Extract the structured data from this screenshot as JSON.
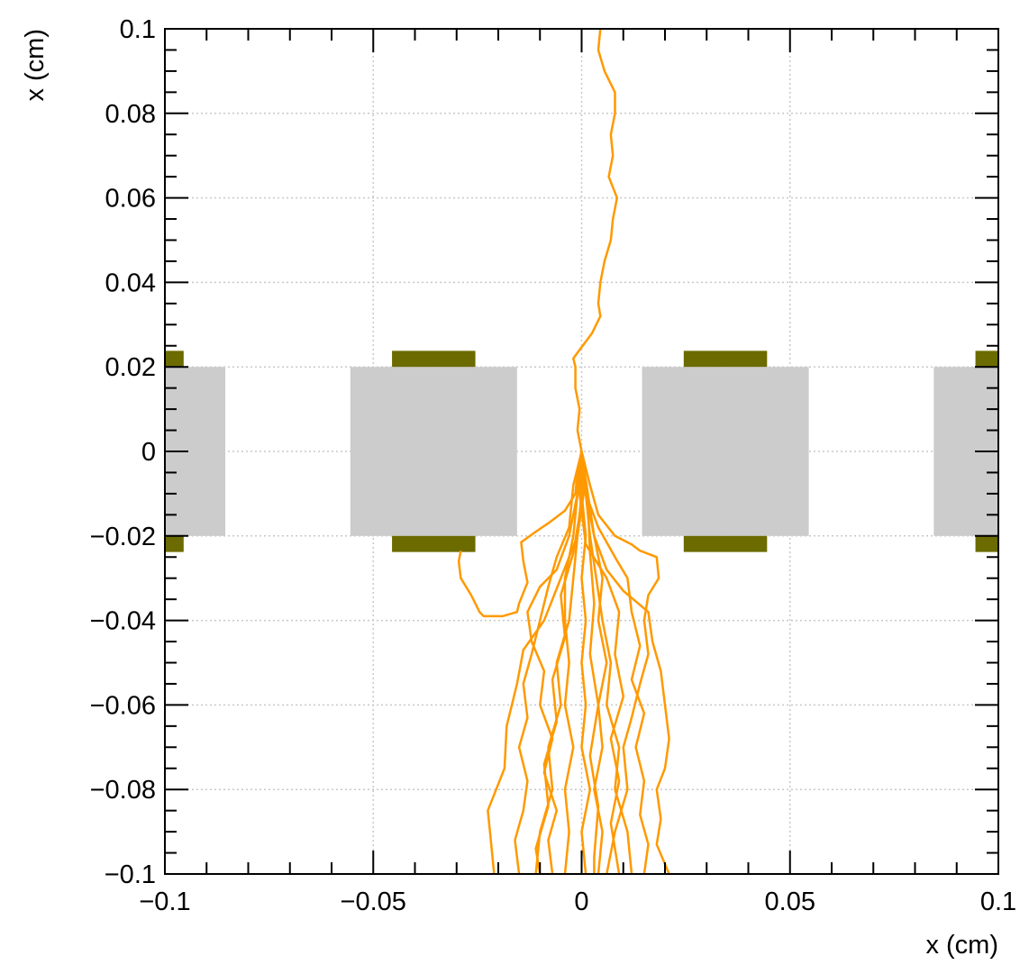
{
  "chart_data": {
    "type": "line",
    "xlabel": "x (cm)",
    "ylabel": "x (cm)",
    "xlim": [
      -0.1,
      0.1
    ],
    "ylim": [
      -0.1,
      0.1
    ],
    "grid": true,
    "x_ticks": [
      {
        "value": -0.1,
        "label": "−0.1"
      },
      {
        "value": -0.05,
        "label": "−0.05"
      },
      {
        "value": 0,
        "label": "0"
      },
      {
        "value": 0.05,
        "label": "0.05"
      },
      {
        "value": 0.1,
        "label": "0.1"
      }
    ],
    "y_ticks": [
      {
        "value": -0.1,
        "label": "−0.1"
      },
      {
        "value": -0.08,
        "label": "−0.08"
      },
      {
        "value": -0.06,
        "label": "−0.06"
      },
      {
        "value": -0.04,
        "label": "−0.04"
      },
      {
        "value": -0.02,
        "label": "−0.02"
      },
      {
        "value": 0,
        "label": "0"
      },
      {
        "value": 0.02,
        "label": "0.02"
      },
      {
        "value": 0.04,
        "label": "0.04"
      },
      {
        "value": 0.06,
        "label": "0.06"
      },
      {
        "value": 0.08,
        "label": "0.08"
      },
      {
        "value": 0.1,
        "label": "0.1"
      }
    ],
    "dielectric_regions": [
      {
        "x": [
          -0.1,
          -0.0855
        ],
        "y": [
          -0.02,
          0.02
        ]
      },
      {
        "x": [
          -0.0555,
          -0.0155
        ],
        "y": [
          -0.02,
          0.02
        ]
      },
      {
        "x": [
          0.0145,
          0.0545
        ],
        "y": [
          -0.02,
          0.02
        ]
      },
      {
        "x": [
          0.0845,
          0.1
        ],
        "y": [
          -0.02,
          0.02
        ]
      }
    ],
    "electrodes": [
      {
        "x": [
          -0.1,
          -0.0955
        ],
        "y": [
          0.02,
          0.0238
        ]
      },
      {
        "x": [
          -0.1,
          -0.0955
        ],
        "y": [
          -0.0238,
          -0.02
        ]
      },
      {
        "x": [
          -0.0455,
          -0.0255
        ],
        "y": [
          0.02,
          0.0238
        ]
      },
      {
        "x": [
          -0.0455,
          -0.0255
        ],
        "y": [
          -0.0238,
          -0.02
        ]
      },
      {
        "x": [
          0.0245,
          0.0445
        ],
        "y": [
          0.02,
          0.0238
        ]
      },
      {
        "x": [
          0.0245,
          0.0445
        ],
        "y": [
          -0.0238,
          -0.02
        ]
      },
      {
        "x": [
          0.0945,
          0.1
        ],
        "y": [
          0.02,
          0.0238
        ]
      },
      {
        "x": [
          0.0945,
          0.1
        ],
        "y": [
          -0.0238,
          -0.02
        ]
      }
    ],
    "tracks": [
      {
        "points": [
          [
            0.0045,
            0.1
          ],
          [
            0.004,
            0.095
          ],
          [
            0.0055,
            0.09
          ],
          [
            0.008,
            0.085
          ],
          [
            0.008,
            0.08
          ],
          [
            0.007,
            0.075
          ],
          [
            0.0075,
            0.07
          ],
          [
            0.0065,
            0.065
          ],
          [
            0.0085,
            0.06
          ],
          [
            0.0075,
            0.055
          ],
          [
            0.007,
            0.05
          ],
          [
            0.0055,
            0.045
          ],
          [
            0.0045,
            0.04
          ],
          [
            0.004,
            0.035
          ],
          [
            0.0045,
            0.032
          ],
          [
            0.0025,
            0.028
          ],
          [
            -0.0005,
            0.024
          ],
          [
            -0.002,
            0.022
          ],
          [
            -0.0015,
            0.02
          ],
          [
            -0.0015,
            0.015
          ],
          [
            -0.0005,
            0.01
          ],
          [
            -0.001,
            0.005
          ],
          [
            0.0,
            0.0
          ]
        ]
      },
      {
        "points": [
          [
            0.0,
            0.0
          ],
          [
            -0.001,
            -0.005
          ],
          [
            -0.0015,
            -0.01
          ],
          [
            -0.004,
            -0.014
          ],
          [
            -0.008,
            -0.017
          ],
          [
            -0.011,
            -0.019
          ],
          [
            -0.0145,
            -0.0215
          ],
          [
            -0.014,
            -0.026
          ],
          [
            -0.013,
            -0.031
          ],
          [
            -0.015,
            -0.036
          ],
          [
            -0.0155,
            -0.038
          ],
          [
            -0.019,
            -0.039
          ],
          [
            -0.0235,
            -0.039
          ],
          [
            -0.0245,
            -0.038
          ],
          [
            -0.0265,
            -0.034
          ],
          [
            -0.029,
            -0.03
          ],
          [
            -0.0295,
            -0.026
          ],
          [
            -0.029,
            -0.0235
          ]
        ]
      },
      {
        "points": [
          [
            0.0,
            0.0
          ],
          [
            0.0,
            -0.01
          ],
          [
            -0.001,
            -0.02
          ],
          [
            -0.005,
            -0.03
          ],
          [
            -0.009,
            -0.04
          ],
          [
            -0.014,
            -0.047
          ],
          [
            -0.0155,
            -0.055
          ],
          [
            -0.018,
            -0.065
          ],
          [
            -0.0185,
            -0.075
          ],
          [
            -0.0225,
            -0.085
          ],
          [
            -0.022,
            -0.09
          ],
          [
            -0.0215,
            -0.095
          ],
          [
            -0.021,
            -0.1
          ]
        ]
      },
      {
        "points": [
          [
            0.0,
            0.0
          ],
          [
            0.001,
            -0.01
          ],
          [
            0.003,
            -0.02
          ],
          [
            0.006,
            -0.028
          ],
          [
            0.01,
            -0.033
          ],
          [
            0.016,
            -0.038
          ],
          [
            0.017,
            -0.045
          ],
          [
            0.019,
            -0.052
          ],
          [
            0.02,
            -0.06
          ],
          [
            0.021,
            -0.068
          ],
          [
            0.02,
            -0.075
          ],
          [
            0.018,
            -0.08
          ],
          [
            0.019,
            -0.087
          ],
          [
            0.018,
            -0.093
          ],
          [
            0.021,
            -0.1
          ]
        ]
      },
      {
        "points": [
          [
            0.0,
            0.0
          ],
          [
            0.002,
            -0.008
          ],
          [
            0.004,
            -0.015
          ],
          [
            0.008,
            -0.02
          ],
          [
            0.012,
            -0.022
          ],
          [
            0.014,
            -0.0235
          ],
          [
            0.018,
            -0.025
          ],
          [
            0.0185,
            -0.03
          ],
          [
            0.016,
            -0.034
          ],
          [
            0.015,
            -0.04
          ],
          [
            0.016,
            -0.048
          ],
          [
            0.014,
            -0.055
          ],
          [
            0.012,
            -0.063
          ],
          [
            0.01,
            -0.07
          ],
          [
            0.011,
            -0.08
          ],
          [
            0.008,
            -0.09
          ],
          [
            0.006,
            -0.1
          ]
        ]
      },
      {
        "points": [
          [
            0.0,
            0.0
          ],
          [
            -0.002,
            -0.008
          ],
          [
            -0.003,
            -0.018
          ],
          [
            -0.006,
            -0.025
          ],
          [
            -0.008,
            -0.032
          ],
          [
            -0.01,
            -0.04
          ],
          [
            -0.012,
            -0.048
          ],
          [
            -0.014,
            -0.055
          ],
          [
            -0.013,
            -0.063
          ],
          [
            -0.015,
            -0.07
          ],
          [
            -0.013,
            -0.078
          ],
          [
            -0.014,
            -0.085
          ],
          [
            -0.016,
            -0.092
          ],
          [
            -0.015,
            -0.1
          ]
        ]
      },
      {
        "points": [
          [
            0.0,
            0.0
          ],
          [
            0.0005,
            -0.01
          ],
          [
            -0.001,
            -0.02
          ],
          [
            -0.002,
            -0.03
          ],
          [
            -0.003,
            -0.04
          ],
          [
            -0.006,
            -0.05
          ],
          [
            -0.005,
            -0.06
          ],
          [
            -0.008,
            -0.07
          ],
          [
            -0.007,
            -0.08
          ],
          [
            -0.01,
            -0.09
          ],
          [
            -0.011,
            -0.1
          ]
        ]
      },
      {
        "points": [
          [
            0.0,
            0.0
          ],
          [
            0.001,
            -0.01
          ],
          [
            0.002,
            -0.02
          ],
          [
            0.0035,
            -0.03
          ],
          [
            0.005,
            -0.04
          ],
          [
            0.007,
            -0.05
          ],
          [
            0.006,
            -0.06
          ],
          [
            0.009,
            -0.07
          ],
          [
            0.008,
            -0.08
          ],
          [
            0.011,
            -0.09
          ],
          [
            0.012,
            -0.1
          ]
        ]
      },
      {
        "points": [
          [
            0.0,
            0.0
          ],
          [
            0.0,
            -0.01
          ],
          [
            0.001,
            -0.02
          ],
          [
            0.0,
            -0.03
          ],
          [
            0.001,
            -0.04
          ],
          [
            0.0,
            -0.05
          ],
          [
            0.001,
            -0.06
          ],
          [
            0.0,
            -0.07
          ],
          [
            0.002,
            -0.08
          ],
          [
            0.0,
            -0.09
          ],
          [
            0.001,
            -0.1
          ]
        ]
      },
      {
        "points": [
          [
            0.0,
            0.0
          ],
          [
            -0.001,
            -0.01
          ],
          [
            -0.002,
            -0.02
          ],
          [
            -0.004,
            -0.03
          ],
          [
            -0.004,
            -0.04
          ],
          [
            -0.003,
            -0.05
          ],
          [
            -0.004,
            -0.06
          ],
          [
            -0.002,
            -0.07
          ],
          [
            -0.004,
            -0.08
          ],
          [
            -0.003,
            -0.09
          ],
          [
            -0.004,
            -0.1
          ]
        ]
      },
      {
        "points": [
          [
            0.0,
            0.0
          ],
          [
            0.0015,
            -0.01
          ],
          [
            0.003,
            -0.02
          ],
          [
            0.005,
            -0.03
          ],
          [
            0.004,
            -0.04
          ],
          [
            0.006,
            -0.05
          ],
          [
            0.004,
            -0.06
          ],
          [
            0.005,
            -0.07
          ],
          [
            0.003,
            -0.08
          ],
          [
            0.005,
            -0.09
          ],
          [
            0.004,
            -0.1
          ]
        ]
      },
      {
        "points": [
          [
            0.0,
            0.0
          ],
          [
            -0.001,
            -0.01
          ],
          [
            -0.003,
            -0.02
          ],
          [
            -0.006,
            -0.028
          ],
          [
            -0.01,
            -0.032
          ],
          [
            -0.013,
            -0.038
          ],
          [
            -0.012,
            -0.045
          ],
          [
            -0.009,
            -0.052
          ],
          [
            -0.01,
            -0.06
          ],
          [
            -0.007,
            -0.068
          ],
          [
            -0.009,
            -0.076
          ],
          [
            -0.006,
            -0.085
          ],
          [
            -0.008,
            -0.092
          ],
          [
            -0.007,
            -0.1
          ]
        ]
      },
      {
        "points": [
          [
            0.0,
            0.0
          ],
          [
            0.001,
            -0.01
          ],
          [
            0.004,
            -0.018
          ],
          [
            0.008,
            -0.025
          ],
          [
            0.011,
            -0.03
          ],
          [
            0.012,
            -0.038
          ],
          [
            0.014,
            -0.046
          ],
          [
            0.012,
            -0.054
          ],
          [
            0.015,
            -0.062
          ],
          [
            0.013,
            -0.07
          ],
          [
            0.015,
            -0.078
          ],
          [
            0.014,
            -0.086
          ],
          [
            0.016,
            -0.093
          ],
          [
            0.015,
            -0.1
          ]
        ]
      },
      {
        "points": [
          [
            0.0,
            0.0
          ],
          [
            0.0,
            -0.012
          ],
          [
            -0.002,
            -0.024
          ],
          [
            -0.005,
            -0.034
          ],
          [
            -0.004,
            -0.044
          ],
          [
            -0.007,
            -0.054
          ],
          [
            -0.006,
            -0.064
          ],
          [
            -0.009,
            -0.074
          ],
          [
            -0.008,
            -0.084
          ],
          [
            -0.011,
            -0.094
          ],
          [
            -0.01,
            -0.1
          ]
        ]
      },
      {
        "points": [
          [
            0.0,
            0.0
          ],
          [
            0.0015,
            -0.012
          ],
          [
            0.002,
            -0.024
          ],
          [
            0.003,
            -0.036
          ],
          [
            0.002,
            -0.048
          ],
          [
            0.004,
            -0.06
          ],
          [
            0.002,
            -0.072
          ],
          [
            0.004,
            -0.084
          ],
          [
            0.003,
            -0.096
          ],
          [
            0.003,
            -0.1
          ]
        ]
      },
      {
        "points": [
          [
            0.0,
            0.0
          ],
          [
            -0.0005,
            -0.01
          ],
          [
            0.001,
            -0.022
          ],
          [
            0.006,
            -0.03
          ],
          [
            0.009,
            -0.038
          ],
          [
            0.008,
            -0.048
          ],
          [
            0.01,
            -0.058
          ],
          [
            0.007,
            -0.068
          ],
          [
            0.009,
            -0.078
          ],
          [
            0.007,
            -0.088
          ],
          [
            0.009,
            -0.1
          ]
        ]
      }
    ]
  }
}
